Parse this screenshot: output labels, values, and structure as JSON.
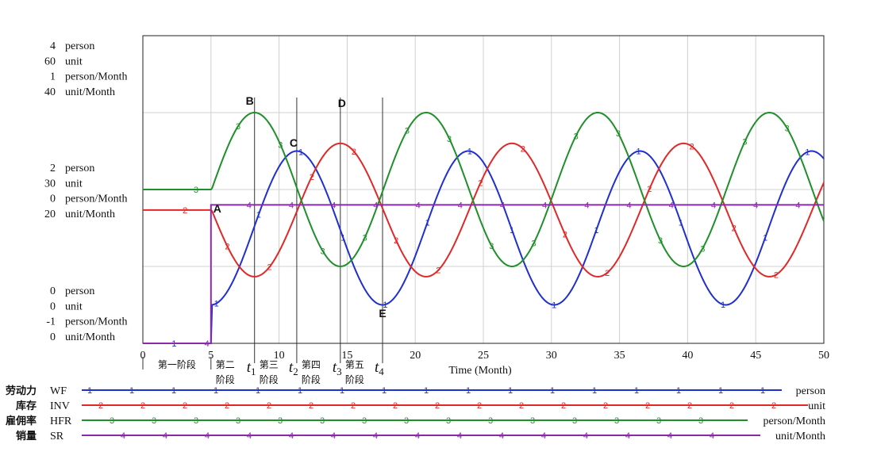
{
  "chart_data": {
    "type": "line",
    "xlabel": "Time (Month)",
    "xlim": [
      0,
      50
    ],
    "x_ticks": [
      "0",
      "5",
      "10",
      "15",
      "20",
      "25",
      "30",
      "35",
      "40",
      "45",
      "50"
    ],
    "y_scales": {
      "top": [
        "4 person",
        "60 unit",
        "1 person/Month",
        "40 unit/Month"
      ],
      "middle": [
        "2 person",
        "30 unit",
        "0 person/Month",
        "20 unit/Month"
      ],
      "bottom": [
        "0 person",
        "0 unit",
        "-1 person/Month",
        "0 unit/Month"
      ]
    },
    "series": [
      {
        "marker": "1",
        "code": "WF",
        "name": "劳动力",
        "unit": "person",
        "color": "#1f2fd0",
        "ylim": [
          0,
          4
        ],
        "initial": 0.0,
        "mean": 1.5,
        "amplitude": 1.0,
        "period": 12.6,
        "peak_time": 11.3,
        "start": 5
      },
      {
        "marker": "2",
        "code": "INV",
        "name": "库存",
        "unit": "unit",
        "color": "#e02828",
        "ylim": [
          0,
          60
        ],
        "initial": 26,
        "mean": 26,
        "amplitude": 13,
        "period": 12.6,
        "peak_time": 14.5,
        "start": 5
      },
      {
        "marker": "3",
        "code": "HFR",
        "name": "雇佣率",
        "unit": "person/Month",
        "color": "#1f8f2a",
        "ylim": [
          -1,
          1
        ],
        "initial": 0.0,
        "mean": 0.0,
        "amplitude": 0.5,
        "period": 12.6,
        "peak_time": 8.2,
        "start": 5
      },
      {
        "marker": "4",
        "code": "SR",
        "name": "销量",
        "unit": "unit/Month",
        "color": "#8a2aa8",
        "ylim": [
          0,
          40
        ],
        "initial": 0,
        "value_after_step": 18,
        "step_time": 5
      }
    ],
    "points": [
      {
        "label": "A",
        "x": 5
      },
      {
        "label": "B",
        "x": 8.2
      },
      {
        "label": "C",
        "x": 11.3
      },
      {
        "label": "D",
        "x": 14.5
      },
      {
        "label": "E",
        "x": 17.6
      }
    ],
    "phase_lines": [
      {
        "label": "t",
        "sub": "1",
        "x": 8.2
      },
      {
        "label": "t",
        "sub": "2",
        "x": 11.3
      },
      {
        "label": "t",
        "sub": "3",
        "x": 14.5
      },
      {
        "label": "t",
        "sub": "4",
        "x": 17.6
      }
    ],
    "stages": [
      {
        "lines": [
          "第一阶段"
        ],
        "x_from": 0,
        "x_to": 5
      },
      {
        "lines": [
          "第二",
          "阶段"
        ],
        "x_from": 5,
        "x_to": 8.2
      },
      {
        "lines": [
          "第三",
          "阶段"
        ],
        "x_from": 8.2,
        "x_to": 11.3
      },
      {
        "lines": [
          "第四",
          "阶段"
        ],
        "x_from": 11.3,
        "x_to": 14.5
      },
      {
        "lines": [
          "第五",
          "阶段"
        ],
        "x_from": 14.5,
        "x_to": 17.6
      }
    ],
    "grid": true
  }
}
